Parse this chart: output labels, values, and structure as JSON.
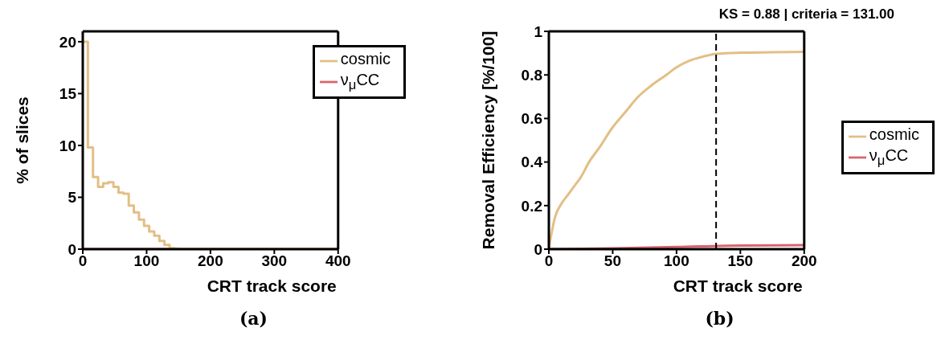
{
  "chart_data": [
    {
      "type": "histogram",
      "xlabel": "CRT track score",
      "ylabel": "% of slices",
      "annotations": [
        "(a)"
      ],
      "bins": [
        0,
        8,
        16,
        24,
        32,
        40,
        48,
        56,
        64,
        72,
        80,
        88,
        96,
        104,
        112,
        120,
        128,
        136,
        144,
        152,
        400
      ],
      "xlim": [
        0,
        400
      ],
      "xticks": [
        0,
        100,
        200,
        300,
        400
      ],
      "ylim": [
        0,
        21
      ],
      "yticks": [
        0,
        5,
        10,
        15,
        20
      ],
      "legend": "top right",
      "series": [
        {
          "name": "ν$_{μ}$CC",
          "color": "#d9646a",
          "values": [
            0,
            0,
            0,
            0,
            0,
            0,
            0,
            0,
            0,
            0,
            0,
            0,
            0,
            0,
            0,
            0,
            0,
            0,
            0,
            0
          ]
        },
        {
          "name": "cosmic",
          "color": "#e2bf86",
          "values": [
            20,
            9.8,
            6.95,
            6.0,
            6.35,
            6.45,
            6.0,
            5.45,
            5.35,
            4.2,
            3.55,
            2.85,
            2.25,
            1.7,
            1.3,
            0.8,
            0.4,
            0.1,
            0.05,
            0
          ]
        }
      ]
    },
    {
      "type": "line",
      "title": "KS = 0.88 | criteria = 131.00",
      "xlabel": "CRT track score",
      "ylabel": "Removal Efficiency [%/100]",
      "annotations": [
        "(b)"
      ],
      "xlim": [
        0,
        200
      ],
      "xticks": [
        0,
        50,
        100,
        150,
        200
      ],
      "ylim": [
        0,
        1
      ],
      "yticks": [
        0,
        0.2,
        0.4,
        0.6,
        0.8,
        1
      ],
      "legend": "right",
      "ref_lines": [
        {
          "axis": "x",
          "value": 131,
          "color": "#000000",
          "line_style": "dashed"
        }
      ],
      "series": [
        {
          "name": "ν$_{μ}$CC",
          "color": "#d9646a",
          "x": [
            0,
            50,
            100,
            150,
            200
          ],
          "values": [
            0,
            0.004,
            0.01,
            0.017,
            0.018
          ]
        },
        {
          "name": "cosmic",
          "color": "#e2bf86",
          "x": [
            0,
            2,
            5,
            10,
            15,
            20,
            25,
            31.5,
            40,
            50,
            60,
            70,
            80,
            92,
            100,
            110,
            120,
            131,
            150,
            175,
            200
          ],
          "values": [
            0,
            0.07,
            0.15,
            0.21,
            0.25,
            0.29,
            0.33,
            0.4,
            0.47,
            0.56,
            0.63,
            0.7,
            0.75,
            0.8,
            0.835,
            0.865,
            0.883,
            0.897,
            0.902,
            0.904,
            0.906
          ]
        }
      ]
    }
  ]
}
